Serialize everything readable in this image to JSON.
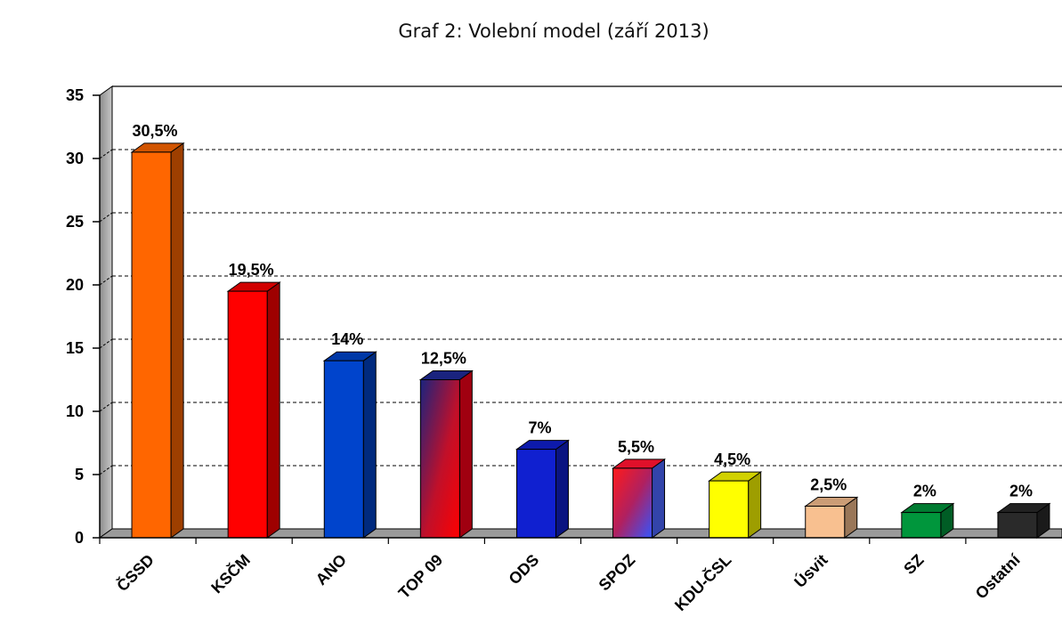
{
  "chart_data": {
    "type": "bar",
    "title": "Graf 2: Volební model (září 2013)",
    "xlabel": "",
    "ylabel": "",
    "ylim": [
      0,
      35
    ],
    "yticks": [
      "0",
      "5",
      "10",
      "15",
      "20",
      "25",
      "30",
      "35"
    ],
    "grid": true,
    "categories": [
      "ČSSD",
      "KSČM",
      "ANO",
      "TOP 09",
      "ODS",
      "SPOZ",
      "KDU-ČSL",
      "Úsvit",
      "SZ",
      "Ostatní"
    ],
    "values": [
      30.5,
      19.5,
      14,
      12.5,
      7,
      5.5,
      4.5,
      2.5,
      2,
      2
    ],
    "data_labels": [
      "30,5%",
      "19,5%",
      "14%",
      "12,5%",
      "7%",
      "5,5%",
      "4,5%",
      "2,5%",
      "2%",
      "2%"
    ],
    "colors": [
      "#ff6600",
      "#ff0000",
      "#0044cc",
      "gradient-navy-red",
      "#1020d0",
      "gradient-red-blue",
      "#ffff00",
      "#f8c090",
      "#00963c",
      "#2a2a2a"
    ]
  }
}
